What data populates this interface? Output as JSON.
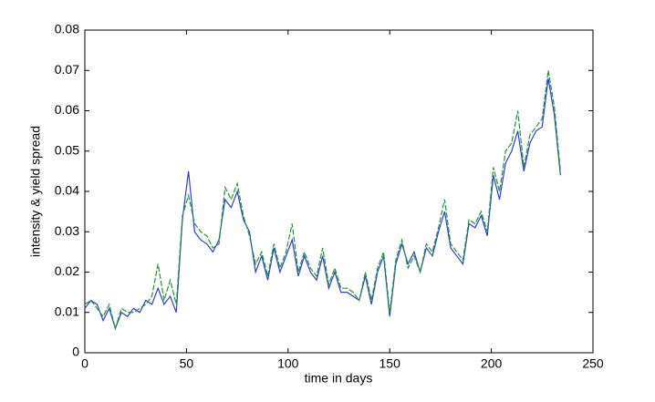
{
  "chart_data": {
    "type": "line",
    "xlabel": "time in days",
    "ylabel": "intensity & yield spread",
    "x": [
      0,
      3,
      6,
      9,
      12,
      15,
      18,
      21,
      24,
      27,
      30,
      33,
      36,
      39,
      42,
      45,
      48,
      51,
      54,
      57,
      60,
      63,
      66,
      69,
      72,
      75,
      78,
      81,
      84,
      87,
      90,
      93,
      96,
      99,
      102,
      105,
      108,
      111,
      114,
      117,
      120,
      123,
      126,
      129,
      132,
      135,
      138,
      141,
      144,
      147,
      150,
      153,
      156,
      159,
      162,
      165,
      168,
      171,
      174,
      177,
      180,
      183,
      186,
      189,
      192,
      195,
      198,
      201,
      204,
      207,
      210,
      213,
      216,
      219,
      222,
      225,
      228,
      231,
      234
    ],
    "series": [
      {
        "color": "#2b3fd6",
        "dash": false,
        "values": [
          0.011,
          0.013,
          0.012,
          0.008,
          0.011,
          0.006,
          0.01,
          0.009,
          0.011,
          0.01,
          0.013,
          0.012,
          0.016,
          0.012,
          0.014,
          0.01,
          0.033,
          0.045,
          0.03,
          0.028,
          0.027,
          0.025,
          0.028,
          0.038,
          0.036,
          0.04,
          0.033,
          0.03,
          0.02,
          0.024,
          0.018,
          0.026,
          0.02,
          0.024,
          0.028,
          0.019,
          0.024,
          0.02,
          0.018,
          0.024,
          0.016,
          0.02,
          0.015,
          0.015,
          0.014,
          0.013,
          0.019,
          0.012,
          0.02,
          0.024,
          0.009,
          0.022,
          0.027,
          0.022,
          0.025,
          0.02,
          0.026,
          0.024,
          0.03,
          0.035,
          0.026,
          0.024,
          0.022,
          0.032,
          0.031,
          0.034,
          0.029,
          0.044,
          0.038,
          0.047,
          0.05,
          0.055,
          0.045,
          0.052,
          0.055,
          0.056,
          0.068,
          0.059,
          0.044
        ]
      },
      {
        "color": "#1f9a2e",
        "dash": true,
        "values": [
          0.012,
          0.013,
          0.011,
          0.009,
          0.012,
          0.006,
          0.011,
          0.01,
          0.01,
          0.011,
          0.012,
          0.014,
          0.022,
          0.013,
          0.018,
          0.012,
          0.034,
          0.039,
          0.032,
          0.03,
          0.029,
          0.026,
          0.027,
          0.041,
          0.038,
          0.042,
          0.034,
          0.029,
          0.022,
          0.025,
          0.019,
          0.027,
          0.021,
          0.025,
          0.032,
          0.02,
          0.025,
          0.021,
          0.019,
          0.026,
          0.017,
          0.021,
          0.016,
          0.016,
          0.015,
          0.013,
          0.02,
          0.013,
          0.021,
          0.025,
          0.01,
          0.023,
          0.028,
          0.021,
          0.024,
          0.02,
          0.027,
          0.025,
          0.031,
          0.038,
          0.027,
          0.025,
          0.023,
          0.033,
          0.032,
          0.035,
          0.03,
          0.046,
          0.04,
          0.05,
          0.052,
          0.06,
          0.046,
          0.054,
          0.056,
          0.058,
          0.07,
          0.061,
          0.045
        ]
      }
    ],
    "xlim": [
      0,
      250
    ],
    "xticks": [
      0,
      50,
      100,
      150,
      200,
      250
    ],
    "ylim": [
      0,
      0.08
    ],
    "yticks": [
      0,
      0.01,
      0.02,
      0.03,
      0.04,
      0.05,
      0.06,
      0.07,
      0.08
    ],
    "grid": false
  }
}
